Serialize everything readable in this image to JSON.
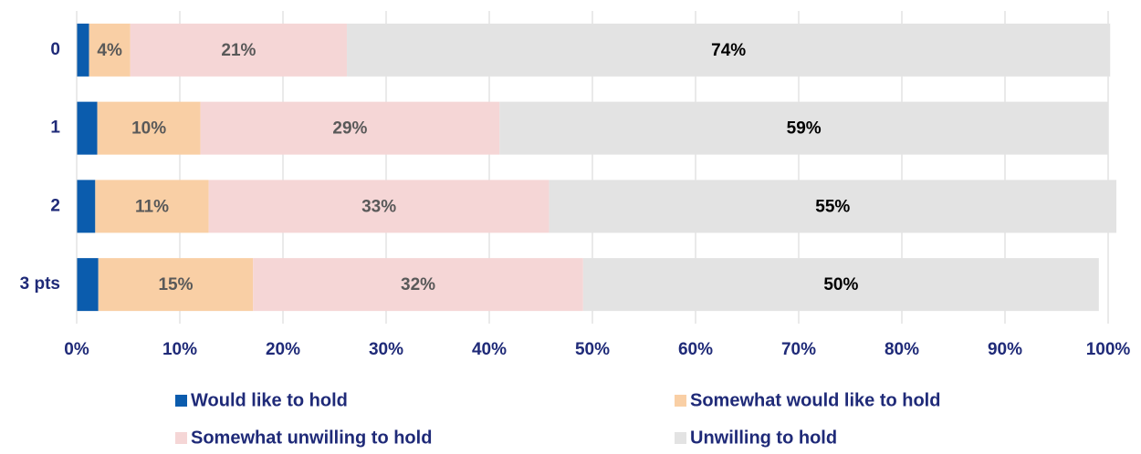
{
  "chart_data": {
    "type": "stacked-bar-horizontal",
    "categories": [
      "0",
      "1",
      "2",
      "3 pts"
    ],
    "series": [
      {
        "name": "Would like to hold",
        "color": "#0b5cad",
        "values": [
          1.2,
          2,
          1.8,
          2.1
        ]
      },
      {
        "name": "Somewhat would like to hold",
        "color": "#f9cfa5",
        "values": [
          4,
          10,
          11,
          15
        ],
        "value_labels": [
          "4%",
          "10%",
          "11%",
          "15%"
        ]
      },
      {
        "name": "Somewhat unwilling to hold",
        "color": "#f5d6d6",
        "values": [
          21,
          29,
          33,
          32
        ],
        "value_labels": [
          "21%",
          "29%",
          "33%",
          "32%"
        ]
      },
      {
        "name": "Unwilling to hold",
        "color": "#e3e3e3",
        "values": [
          74,
          59,
          55,
          50
        ],
        "value_labels": [
          "74%",
          "59%",
          "55%",
          "50%"
        ]
      }
    ],
    "xlim": [
      0,
      100
    ],
    "xticks": [
      {
        "value": 0,
        "label": "0%"
      },
      {
        "value": 10,
        "label": "10%"
      },
      {
        "value": 20,
        "label": "20%"
      },
      {
        "value": 30,
        "label": "30%"
      },
      {
        "value": 40,
        "label": "40%"
      },
      {
        "value": 50,
        "label": "50%"
      },
      {
        "value": 60,
        "label": "60%"
      },
      {
        "value": 70,
        "label": "70%"
      },
      {
        "value": 80,
        "label": "80%"
      },
      {
        "value": 90,
        "label": "90%"
      },
      {
        "value": 100,
        "label": "100%"
      }
    ],
    "grid": true
  }
}
